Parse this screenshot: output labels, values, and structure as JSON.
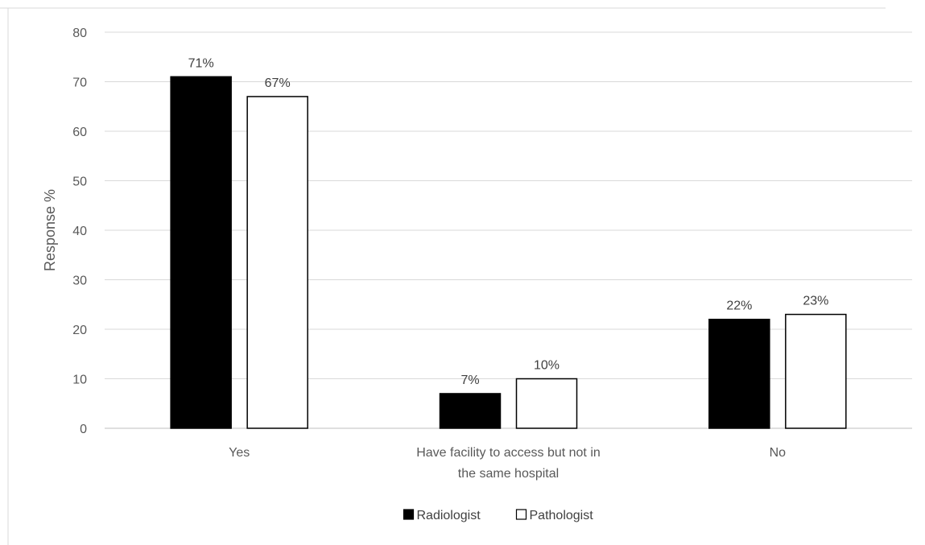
{
  "chart_data": {
    "type": "bar",
    "title": "",
    "xlabel": "",
    "ylabel": "Response  %",
    "ylim": [
      0,
      80
    ],
    "yticks": [
      0,
      10,
      20,
      30,
      40,
      50,
      60,
      70,
      80
    ],
    "grid": true,
    "legend_position": "bottom",
    "categories": [
      [
        "Yes"
      ],
      [
        "Have facility to access but not in",
        "the same hospital"
      ],
      [
        "No"
      ]
    ],
    "series": [
      {
        "name": "Radiologist",
        "values": [
          71,
          7,
          22
        ],
        "labels": [
          "71%",
          "7%",
          "22%"
        ],
        "fill": "#000000",
        "stroke": "#000000"
      },
      {
        "name": "Pathologist",
        "values": [
          67,
          10,
          23
        ],
        "labels": [
          "67%",
          "10%",
          "23%"
        ],
        "fill": "#ffffff",
        "stroke": "#000000"
      }
    ]
  }
}
